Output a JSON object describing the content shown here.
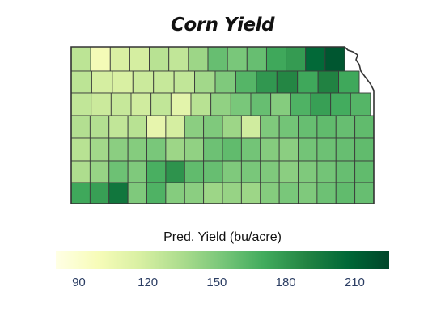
{
  "title": "Corn Yield",
  "chart_data": {
    "type": "heatmap",
    "title": "Corn Yield",
    "region": "Kansas counties",
    "colorbar_label": "Pred. Yield (bu/acre)",
    "color_range": [
      80,
      225
    ],
    "ticks": [
      "90",
      "120",
      "150",
      "180",
      "210"
    ],
    "tick_values": [
      90,
      120,
      150,
      180,
      210
    ],
    "colorscale": [
      "#ffffe5",
      "#f7fcb9",
      "#d9f0a3",
      "#addd8e",
      "#78c679",
      "#41ab5d",
      "#238443",
      "#006837",
      "#004529"
    ],
    "rows": [
      [
        128,
        100,
        116,
        118,
        130,
        126,
        140,
        158,
        152,
        158,
        172,
        178,
        206,
        216
      ],
      [
        128,
        118,
        116,
        122,
        124,
        126,
        138,
        150,
        164,
        180,
        188,
        172,
        190,
        172
      ],
      [
        126,
        122,
        124,
        120,
        126,
        110,
        130,
        144,
        152,
        158,
        148,
        166,
        176,
        170,
        164
      ],
      [
        132,
        132,
        126,
        130,
        108,
        118,
        146,
        150,
        140,
        120,
        150,
        154,
        158,
        160,
        158,
        160
      ],
      [
        130,
        138,
        146,
        148,
        152,
        140,
        144,
        156,
        160,
        154,
        148,
        146,
        154,
        156,
        158,
        160
      ],
      [
        134,
        142,
        156,
        150,
        168,
        182,
        160,
        158,
        150,
        152,
        150,
        146,
        150,
        154,
        158,
        160
      ],
      [
        172,
        176,
        198,
        150,
        166,
        148,
        146,
        140,
        142,
        140,
        148,
        152,
        150,
        156,
        160,
        158
      ]
    ]
  }
}
